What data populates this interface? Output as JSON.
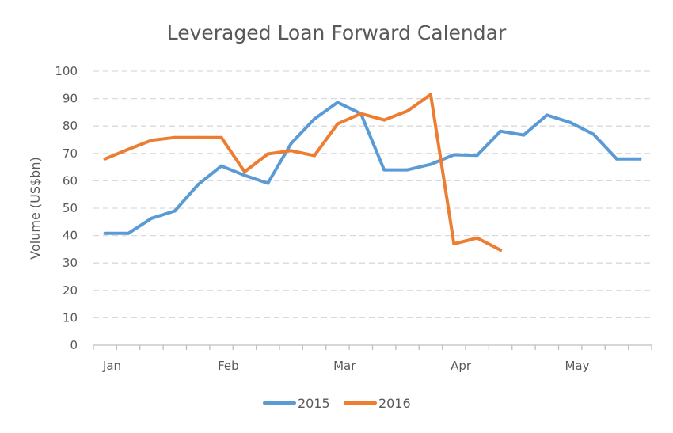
{
  "chart_data": {
    "type": "line",
    "title": "Leveraged Loan Forward Calendar",
    "xlabel": "",
    "ylabel": "Volume (US$bn)",
    "ylim": [
      0,
      100
    ],
    "yticks": [
      "0",
      "10",
      "20",
      "30",
      "40",
      "50",
      "60",
      "70",
      "80",
      "90",
      "100"
    ],
    "xticks": [
      {
        "label": "Jan",
        "week": 0.3
      },
      {
        "label": "Feb",
        "week": 5.3
      },
      {
        "label": "Mar",
        "week": 10.3
      },
      {
        "label": "Apr",
        "week": 15.3
      },
      {
        "label": "May",
        "week": 20.3
      }
    ],
    "grid": "horizontal dashed",
    "legend_position": "bottom",
    "series": [
      {
        "name": "2015",
        "color": "#5B9BD5",
        "values": [
          40.8,
          40.8,
          46.3,
          49.0,
          58.6,
          65.4,
          62.0,
          59.1,
          73.6,
          82.6,
          88.6,
          84.5,
          64.0,
          64.0,
          66.0,
          69.5,
          69.3,
          78.1,
          76.7,
          84.0,
          81.3,
          77.0,
          68.0,
          68.0
        ]
      },
      {
        "name": "2016",
        "color": "#ED7D31",
        "values": [
          68.0,
          71.5,
          74.8,
          75.8,
          75.8,
          75.8,
          63.3,
          69.8,
          71.0,
          69.2,
          80.8,
          84.5,
          82.2,
          85.5,
          91.5,
          37.0,
          39.1,
          34.7
        ]
      }
    ]
  }
}
